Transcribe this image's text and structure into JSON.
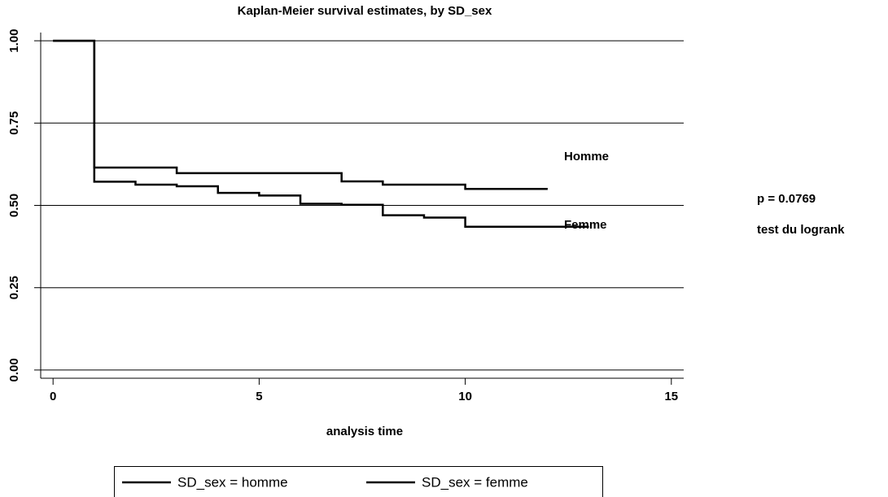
{
  "chart_data": {
    "type": "line",
    "step": "post",
    "title": "Kaplan-Meier survival estimates, by SD_sex",
    "x_label": "analysis time",
    "x": [
      0,
      1,
      2,
      3,
      4,
      5,
      6,
      7,
      8,
      9,
      10,
      11,
      12,
      13
    ],
    "series": [
      {
        "name": "SD_sex = homme",
        "color": "#000000",
        "values": [
          1,
          0.615,
          0.615,
          0.598,
          0.598,
          0.598,
          0.598,
          0.573,
          0.563,
          0.563,
          0.55,
          0.55,
          0.55,
          null
        ]
      },
      {
        "name": "SD_sex = femme",
        "color": "#000000",
        "values": [
          1,
          0.572,
          0.563,
          0.558,
          0.538,
          0.53,
          0.505,
          0.502,
          0.47,
          0.463,
          0.435,
          0.435,
          0.435,
          0.435
        ]
      }
    ],
    "xlim": [
      -0.3,
      15.3
    ],
    "xticks": [
      0,
      5,
      10,
      15
    ],
    "ylim": [
      -0.025,
      1.025
    ],
    "yticks": [
      {
        "value": 0,
        "label": "0.00"
      },
      {
        "value": 0.25,
        "label": "0.25"
      },
      {
        "value": 0.5,
        "label": "0.50"
      },
      {
        "value": 0.75,
        "label": "0.75"
      },
      {
        "value": 1,
        "label": "1.00"
      }
    ],
    "grid": true,
    "annotations": [
      "Homme",
      "Femme",
      "p =   0.0769",
      "test du logrank"
    ],
    "legend": "bottom"
  }
}
